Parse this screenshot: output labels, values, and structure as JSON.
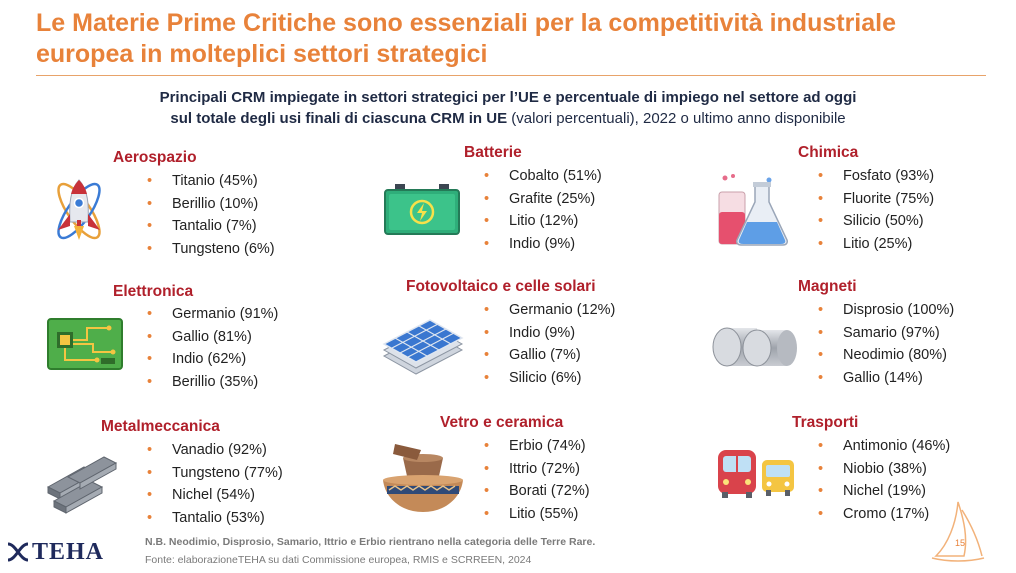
{
  "header": {
    "title_line1": "Le Materie Prime Critiche sono essenziali per la competitività industriale",
    "title_line2": "europea in molteplici settori strategici",
    "subtitle_bold1": "Principali CRM impiegate in settori strategici per l’UE e percentuale di impiego nel settore ad oggi",
    "subtitle_bold2": "sul totale degli usi finali di ciascuna CRM in UE",
    "subtitle_rest": " (valori percentuali), 2022 o ultimo anno disponibile"
  },
  "sectors": [
    {
      "name": "Aerospazio",
      "icon": "rocket-icon",
      "items": [
        "Titanio (45%)",
        "Berillio (10%)",
        "Tantalio (7%)",
        "Tungsteno (6%)"
      ]
    },
    {
      "name": "Batterie",
      "icon": "battery-icon",
      "items": [
        "Cobalto (51%)",
        "Grafite (25%)",
        "Litio (12%)",
        "Indio (9%)"
      ]
    },
    {
      "name": "Chimica",
      "icon": "flask-icon",
      "items": [
        "Fosfato (93%)",
        "Fluorite (75%)",
        "Silicio (50%)",
        "Litio (25%)"
      ]
    },
    {
      "name": "Elettronica",
      "icon": "circuit-board-icon",
      "items": [
        "Germanio (91%)",
        "Gallio (81%)",
        "Indio (62%)",
        "Berillio (35%)"
      ]
    },
    {
      "name": "Fotovoltaico e celle solari",
      "icon": "solar-panel-icon",
      "items": [
        "Germanio (12%)",
        "Indio (9%)",
        "Gallio (7%)",
        "Silicio (6%)"
      ]
    },
    {
      "name": "Magneti",
      "icon": "magnet-discs-icon",
      "items": [
        "Disprosio (100%)",
        "Samario (97%)",
        "Neodimio (80%)",
        "Gallio (14%)"
      ]
    },
    {
      "name": "Metalmeccanica",
      "icon": "steel-beams-icon",
      "items": [
        "Vanadio (92%)",
        "Tungsteno (77%)",
        "Nichel (54%)",
        "Tantalio (53%)"
      ]
    },
    {
      "name": "Vetro e ceramica",
      "icon": "ceramic-bowl-icon",
      "items": [
        "Erbio (74%)",
        "Ittrio (72%)",
        "Borati (72%)",
        "Litio (55%)"
      ]
    },
    {
      "name": "Trasporti",
      "icon": "train-bus-icon",
      "items": [
        "Antimonio (46%)",
        "Niobio (38%)",
        "Nichel (19%)",
        "Cromo (17%)"
      ]
    }
  ],
  "footer": {
    "note": "N.B. Neodimio, Disprosio, Samario, Ittrio e Erbio rientrano nella categoria delle Terre Rare.",
    "source": "Fonte: elaborazioneTEHA  su dati Commissione europea, RMIS e SCRREEN, 2024",
    "logo_text": "TEHA",
    "page_number": "15"
  },
  "colors": {
    "title": "#e8823a",
    "sector_title": "#b0202b",
    "bullet": "#e8823a",
    "subtitle": "#1f2a44"
  }
}
